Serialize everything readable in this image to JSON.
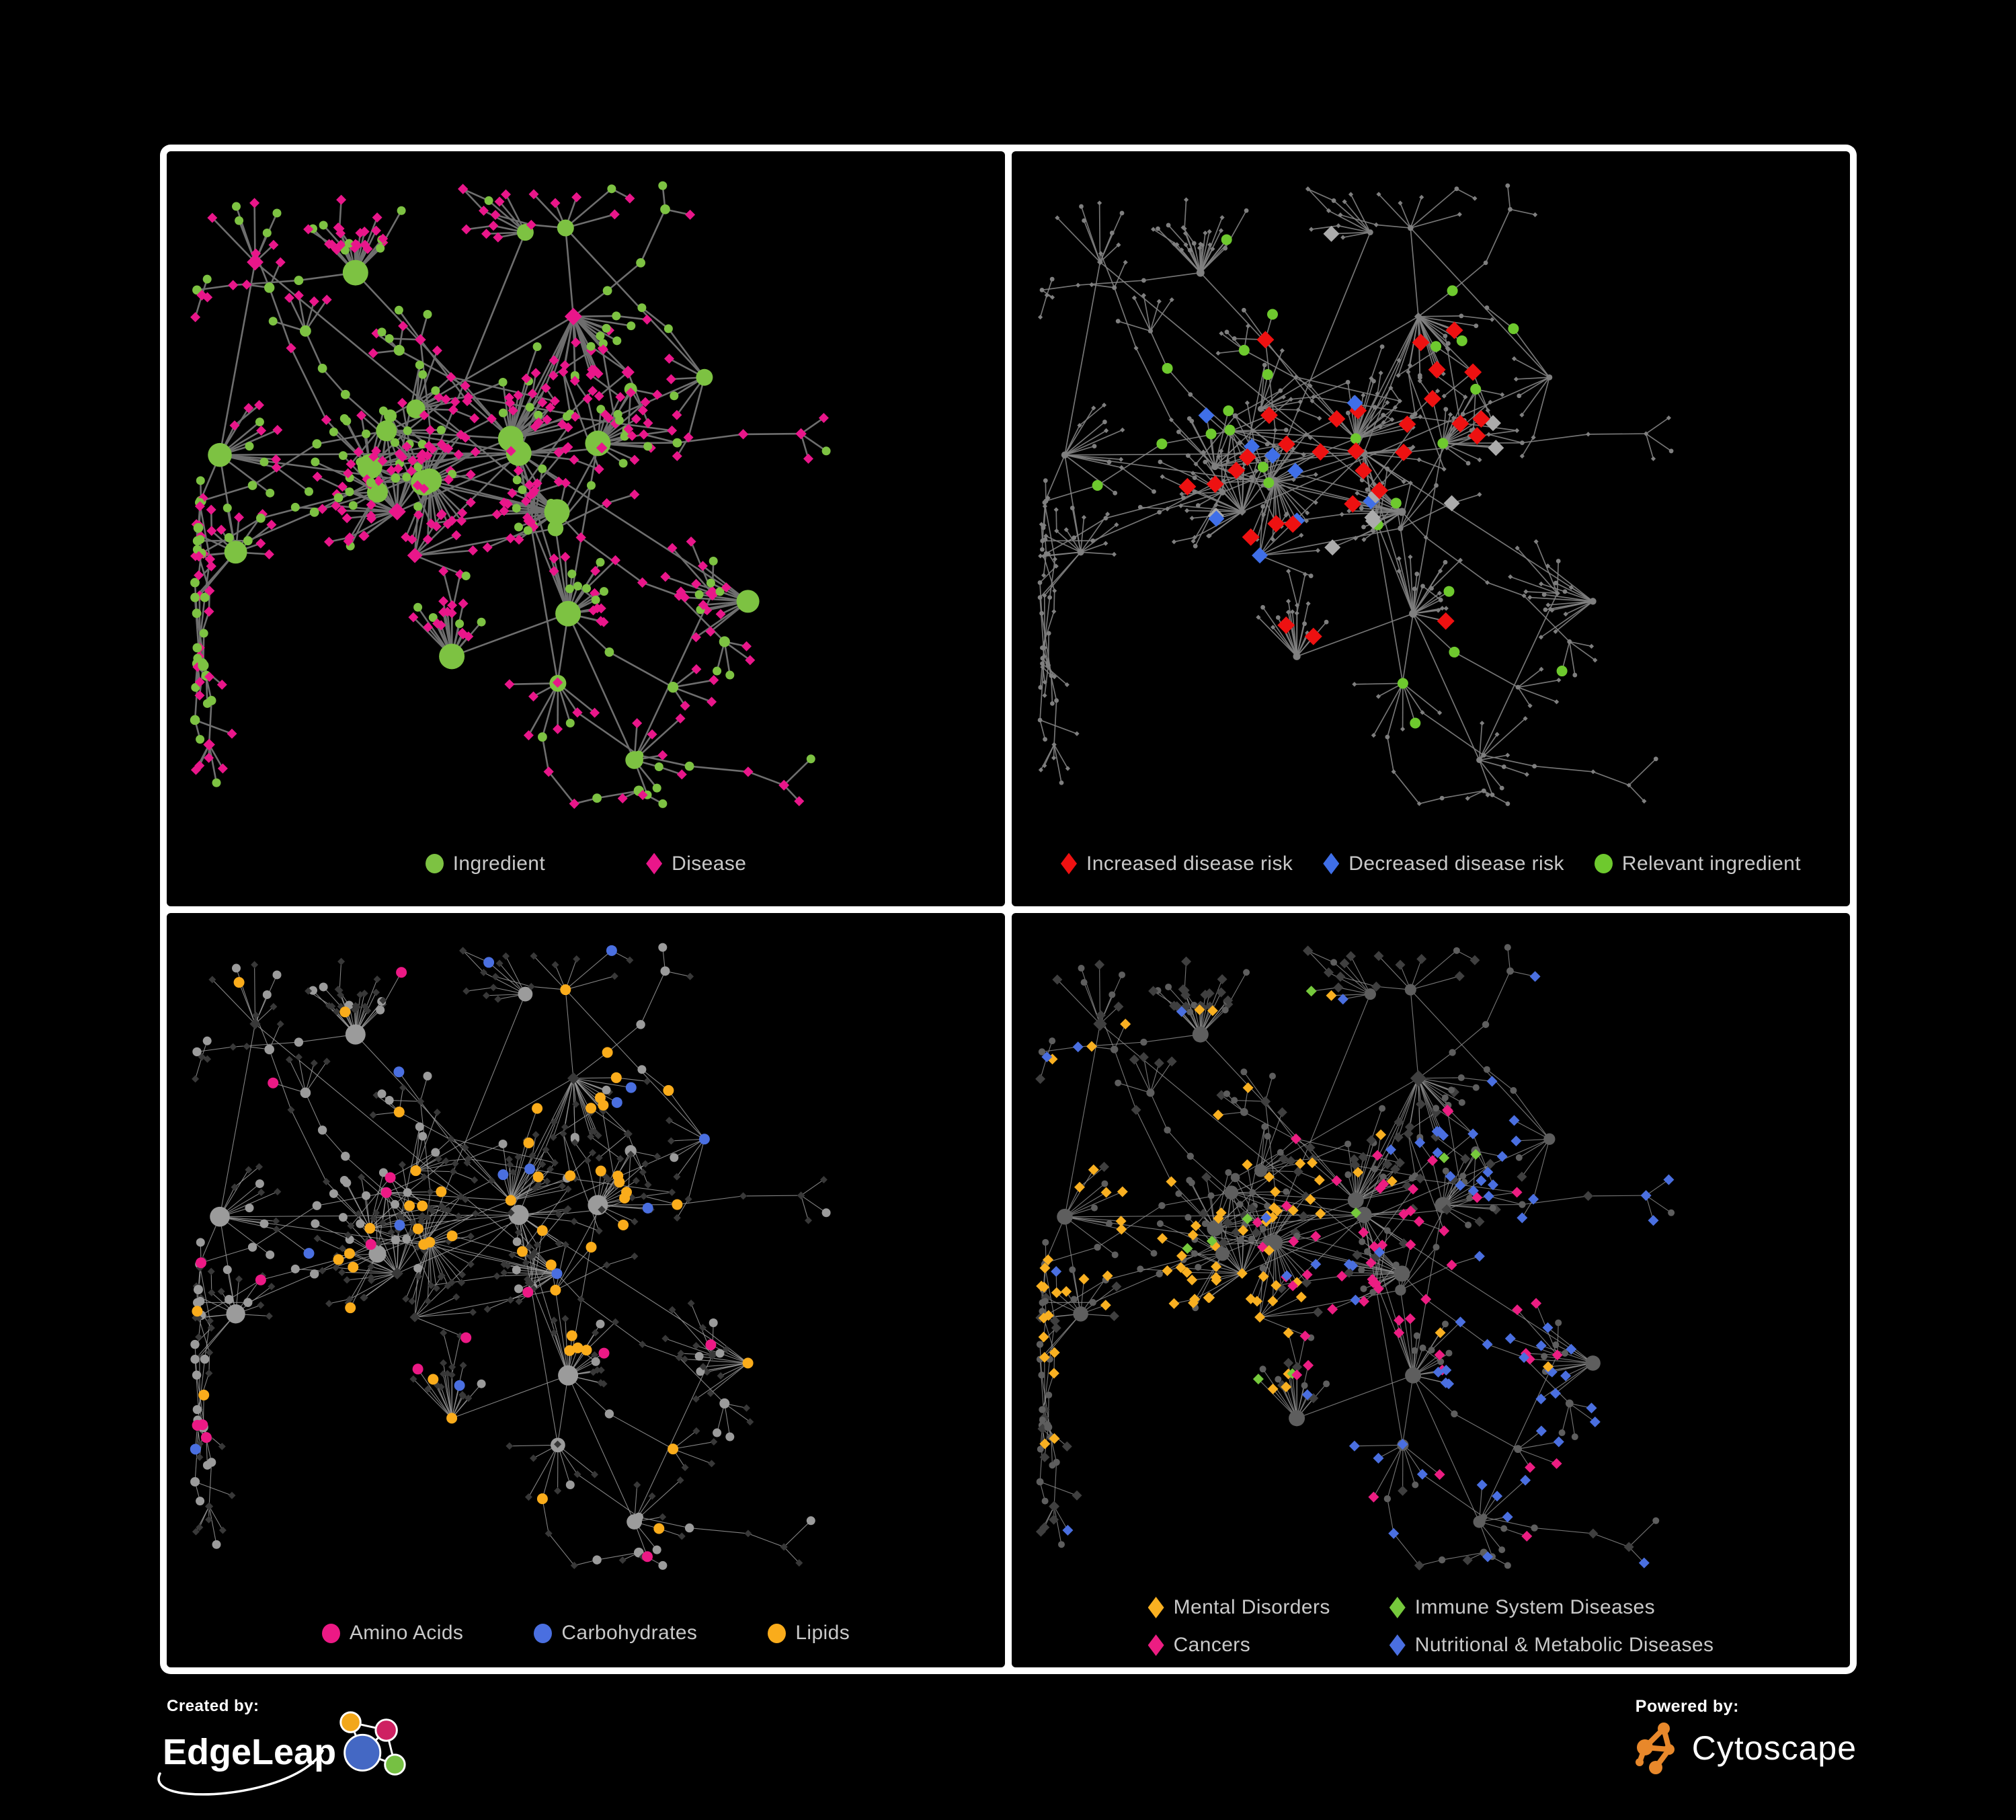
{
  "page": {
    "background": "#000000",
    "frame_color": "#ffffff"
  },
  "branding": {
    "created_by_label": "Created by:",
    "edgeleap_name": "EdgeLeap",
    "powered_by_label": "Powered by:",
    "cytoscape_name": "Cytoscape",
    "edgeleap_logo_colors": {
      "orange": "#F2A71B",
      "magenta": "#CE2162",
      "blue": "#4468C4",
      "green": "#76C043"
    },
    "cytoscape_logo_color": "#E8882B"
  },
  "network": {
    "seed": 1337,
    "hubs": 30,
    "chains": 20,
    "core_extra_edges": 90,
    "core_center": [
      0.42,
      0.4
    ]
  },
  "panels": [
    {
      "name": "ingredient-disease-network",
      "seed": 11,
      "edge": {
        "color": "#6E6E6E",
        "width": 2.6,
        "opacity": 1
      },
      "base": {
        "ing": {
          "shape": "circle",
          "color": "#7DC242",
          "size": 6.5,
          "degScale": 0.75,
          "max": 19
        },
        "dis": {
          "shape": "diamond",
          "color": "#E9168A",
          "size": 7.5,
          "degScale": 0.55,
          "max": 13
        }
      },
      "highlights": [],
      "legend": [
        {
          "label": "Ingredient",
          "shape": "circle",
          "color": "#7DC242"
        },
        {
          "label": "Disease",
          "shape": "diamond",
          "color": "#E9168A"
        }
      ]
    },
    {
      "name": "disease-risk-network",
      "seed": 22,
      "edge": {
        "color": "#828282",
        "width": 1.7,
        "opacity": 0.9
      },
      "base": {
        "ing": {
          "shape": "circle",
          "color": "#7F7F7F",
          "size": 3.4,
          "degScale": 0.12,
          "max": 6
        },
        "dis": {
          "shape": "diamond",
          "color": "#7F7F7F",
          "size": 3.6,
          "degScale": 0.1,
          "max": 6
        }
      },
      "highlights": [
        {
          "name": "increased-risk",
          "kind": "dis",
          "count": 30,
          "shape": "diamond",
          "color": "#EE1111",
          "size": 13,
          "base": 0.015,
          "centers": [
            [
              0.4,
              0.42,
              170,
              0.5
            ],
            [
              0.56,
              0.4,
              170,
              0.5
            ]
          ]
        },
        {
          "name": "decreased-risk",
          "kind": "dis",
          "count": 9,
          "shape": "diamond",
          "color": "#3F6FE8",
          "size": 12,
          "base": 0.0,
          "centers": [
            [
              0.27,
              0.43,
              80,
              0.8
            ],
            [
              0.84,
              0.17,
              60,
              0.9
            ]
          ]
        },
        {
          "name": "neutral-risk",
          "kind": "dis",
          "count": 9,
          "shape": "diamond",
          "color": "#ABABAB",
          "size": 12,
          "base": 0.004,
          "centers": [
            [
              0.45,
              0.44,
              200,
              0.35
            ]
          ]
        },
        {
          "name": "relevant-ingredient",
          "kind": "ing",
          "count": 26,
          "shape": "circle",
          "color": "#6EC92E",
          "size": 8,
          "base": 0.012,
          "centers": [
            [
              0.48,
              0.4,
              220,
              0.5
            ]
          ]
        }
      ],
      "legend": [
        {
          "label": "Increased disease risk",
          "shape": "diamond",
          "color": "#EE1111"
        },
        {
          "label": "Decreased disease risk",
          "shape": "diamond",
          "color": "#3F6FE8"
        },
        {
          "label": "Relevant ingredient",
          "shape": "circle",
          "color": "#6EC92E"
        }
      ]
    },
    {
      "name": "nutrient-class-network",
      "seed": 33,
      "edge": {
        "color": "#9A9A9A",
        "width": 1.1,
        "opacity": 0.85
      },
      "base": {
        "ing": {
          "shape": "circle",
          "color": "#9B9B9B",
          "size": 6.5,
          "degScale": 0.55,
          "max": 15
        },
        "dis": {
          "shape": "diamond",
          "color": "#383838",
          "size": 5.5,
          "degScale": 0.3,
          "max": 9
        }
      },
      "highlights": [
        {
          "name": "lipids",
          "kind": "ing",
          "count": 52,
          "shape": "circle",
          "color": "#FAAC1B",
          "size": 8,
          "base": 0.02,
          "centers": [
            [
              0.5,
              0.28,
              130,
              0.6
            ],
            [
              0.4,
              0.55,
              150,
              0.35
            ]
          ]
        },
        {
          "name": "carbohydrates",
          "kind": "ing",
          "count": 14,
          "shape": "circle",
          "color": "#4A6FE0",
          "size": 8,
          "base": 0.008,
          "centers": [
            [
              0.47,
              0.27,
              110,
              0.5
            ]
          ]
        },
        {
          "name": "amino-acids",
          "kind": "ing",
          "count": 16,
          "shape": "circle",
          "color": "#EC1985",
          "size": 8,
          "base": 0.03,
          "centers": [
            [
              0.2,
              0.75,
              300,
              0.1
            ]
          ]
        }
      ],
      "legend": [
        {
          "label": "Amino Acids",
          "shape": "circle",
          "color": "#EC1985"
        },
        {
          "label": "Carbohydrates",
          "shape": "circle",
          "color": "#4A6FE0"
        },
        {
          "label": "Lipids",
          "shape": "circle",
          "color": "#FAAC1B"
        }
      ]
    },
    {
      "name": "disease-category-network",
      "seed": 44,
      "edge": {
        "color": "#8F8F8F",
        "width": 1.15,
        "opacity": 0.8
      },
      "base": {
        "ing": {
          "shape": "circle",
          "color": "#5E5E5E",
          "size": 5,
          "degScale": 0.45,
          "max": 12
        },
        "dis": {
          "shape": "diamond",
          "color": "#3F3F3F",
          "size": 7.5,
          "degScale": 0.3,
          "max": 12
        }
      },
      "highlights": [
        {
          "name": "mental-disorders",
          "kind": "dis",
          "count": 85,
          "shape": "diamond",
          "color": "#F9B021",
          "size": 8,
          "base": 0.008,
          "centers": [
            [
              0.15,
              0.47,
              140,
              0.8
            ],
            [
              0.3,
              0.2,
              100,
              0.2
            ]
          ]
        },
        {
          "name": "cancers",
          "kind": "dis",
          "count": 55,
          "shape": "diamond",
          "color": "#EC1D82",
          "size": 8,
          "base": 0.01,
          "centers": [
            [
              0.44,
              0.53,
              150,
              0.6
            ]
          ]
        },
        {
          "name": "nutritional-metabolic",
          "kind": "dis",
          "count": 70,
          "shape": "diamond",
          "color": "#4A6FE0",
          "size": 8,
          "base": 0.012,
          "centers": [
            [
              0.6,
              0.6,
              110,
              0.6
            ],
            [
              0.8,
              0.33,
              160,
              0.45
            ],
            [
              0.3,
              0.8,
              100,
              0.2
            ]
          ]
        },
        {
          "name": "immune-system",
          "kind": "dis",
          "count": 9,
          "shape": "diamond",
          "color": "#76C93C",
          "size": 8,
          "base": 0.006,
          "centers": [
            [
              0.45,
              0.45,
              250,
              0.15
            ]
          ]
        }
      ],
      "legend": [
        {
          "label": "Mental Disorders",
          "shape": "diamond",
          "color": "#F9B021"
        },
        {
          "label": "Immune System Diseases",
          "shape": "diamond",
          "color": "#76C93C"
        },
        {
          "label": "Cancers",
          "shape": "diamond",
          "color": "#EC1D82"
        },
        {
          "label": "Nutritional & Metabolic Diseases",
          "shape": "diamond",
          "color": "#4A6FE0"
        }
      ]
    }
  ]
}
